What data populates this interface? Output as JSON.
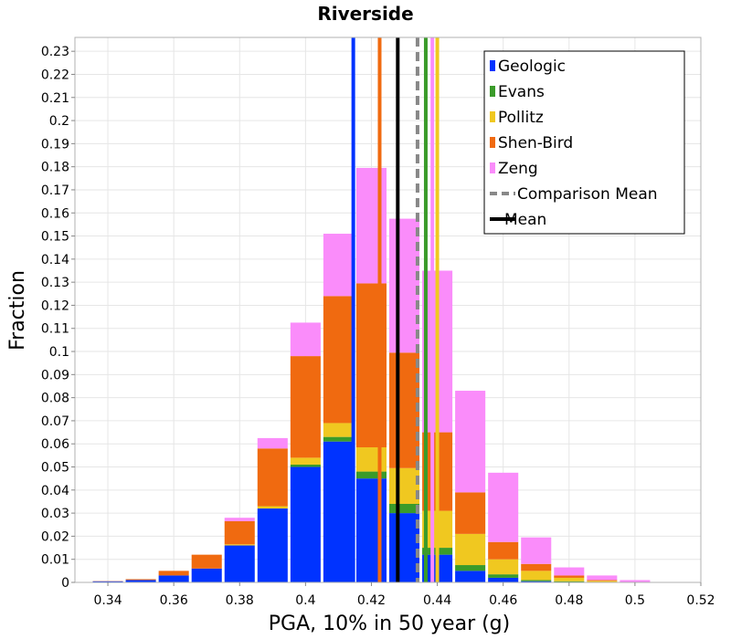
{
  "chart_data": {
    "type": "bar",
    "stacked": true,
    "title": "Riverside",
    "xlabel": "PGA, 10% in 50 year (g)",
    "ylabel": "Fraction",
    "xlim": [
      0.33,
      0.52
    ],
    "ylim": [
      0,
      0.236
    ],
    "xticks": [
      0.34,
      0.36,
      0.38,
      0.4,
      0.42,
      0.44,
      0.46,
      0.48,
      0.5,
      0.52
    ],
    "xtick_labels": [
      "0.34",
      "0.36",
      "0.38",
      "0.4",
      "0.42",
      "0.44",
      "0.46",
      "0.48",
      "0.5",
      "0.52"
    ],
    "yticks": [
      0,
      0.01,
      0.02,
      0.03,
      0.04,
      0.05,
      0.06,
      0.07,
      0.08,
      0.09,
      0.1,
      0.11,
      0.12,
      0.13,
      0.14,
      0.15,
      0.16,
      0.17,
      0.18,
      0.19,
      0.2,
      0.21,
      0.22,
      0.23
    ],
    "ytick_labels": [
      "0",
      "0.01",
      "0.02",
      "0.03",
      "0.04",
      "0.05",
      "0.06",
      "0.07",
      "0.08",
      "0.09",
      "0.1",
      "0.11",
      "0.12",
      "0.13",
      "0.14",
      "0.15",
      "0.16",
      "0.17",
      "0.18",
      "0.19",
      "0.2",
      "0.21",
      "0.22",
      "0.23"
    ],
    "grid": true,
    "legend_position": "top-right",
    "bin_width": 0.01,
    "bin_centers": [
      0.34,
      0.35,
      0.36,
      0.37,
      0.38,
      0.39,
      0.4,
      0.41,
      0.42,
      0.43,
      0.44,
      0.45,
      0.46,
      0.47,
      0.48,
      0.49,
      0.5
    ],
    "series": [
      {
        "name": "Geologic",
        "color": "#0033ff",
        "values": [
          0.0005,
          0.001,
          0.003,
          0.006,
          0.016,
          0.032,
          0.05,
          0.061,
          0.045,
          0.03,
          0.012,
          0.005,
          0.002,
          0.0005,
          0.0002,
          0.0001,
          0.0
        ]
      },
      {
        "name": "Evans",
        "color": "#3a9b2a",
        "values": [
          0.0,
          0.0,
          0.0,
          0.0,
          0.0,
          0.0,
          0.001,
          0.002,
          0.003,
          0.004,
          0.003,
          0.0025,
          0.0015,
          0.0005,
          0.0003,
          0.0001,
          0.0
        ]
      },
      {
        "name": "Pollitz",
        "color": "#f0c820",
        "values": [
          0.0,
          0.0,
          0.0,
          0.0,
          0.0005,
          0.001,
          0.003,
          0.006,
          0.0105,
          0.0155,
          0.016,
          0.0135,
          0.0065,
          0.004,
          0.0015,
          0.0005,
          0.0
        ]
      },
      {
        "name": "Shen-Bird",
        "color": "#f06a10",
        "values": [
          0.0001,
          0.0004,
          0.002,
          0.006,
          0.01,
          0.025,
          0.044,
          0.055,
          0.071,
          0.05,
          0.034,
          0.018,
          0.0075,
          0.003,
          0.001,
          0.0003,
          0.0
        ]
      },
      {
        "name": "Zeng",
        "color": "#fa8cfa",
        "values": [
          0.0,
          0.0,
          0.0,
          0.0,
          0.0015,
          0.0045,
          0.0145,
          0.027,
          0.05,
          0.058,
          0.07,
          0.044,
          0.03,
          0.0115,
          0.0035,
          0.002,
          0.001
        ]
      }
    ],
    "vertical_lines": [
      {
        "name": "Geologic",
        "x": 0.4145,
        "color": "#0033ff",
        "dashed": false
      },
      {
        "name": "Shen-Bird",
        "x": 0.4225,
        "color": "#f06a10",
        "dashed": false
      },
      {
        "name": "Mean",
        "x": 0.428,
        "color": "#000000",
        "dashed": false
      },
      {
        "name": "Comparison Mean",
        "x": 0.434,
        "color": "#888888",
        "dashed": true
      },
      {
        "name": "Evans",
        "x": 0.4365,
        "color": "#3a9b2a",
        "dashed": false
      },
      {
        "name": "Zeng",
        "x": 0.4385,
        "color": "#fa8cfa",
        "dashed": false
      },
      {
        "name": "Pollitz",
        "x": 0.44,
        "color": "#f0c820",
        "dashed": false
      }
    ],
    "legend": [
      {
        "label": "Geologic",
        "color": "#0033ff",
        "style": "box"
      },
      {
        "label": "Evans",
        "color": "#3a9b2a",
        "style": "box"
      },
      {
        "label": "Pollitz",
        "color": "#f0c820",
        "style": "box"
      },
      {
        "label": "Shen-Bird",
        "color": "#f06a10",
        "style": "box"
      },
      {
        "label": "Zeng",
        "color": "#fa8cfa",
        "style": "box"
      },
      {
        "label": "Comparison Mean",
        "color": "#888888",
        "style": "dashed-line"
      },
      {
        "label": "Mean",
        "color": "#000000",
        "style": "line"
      }
    ]
  }
}
